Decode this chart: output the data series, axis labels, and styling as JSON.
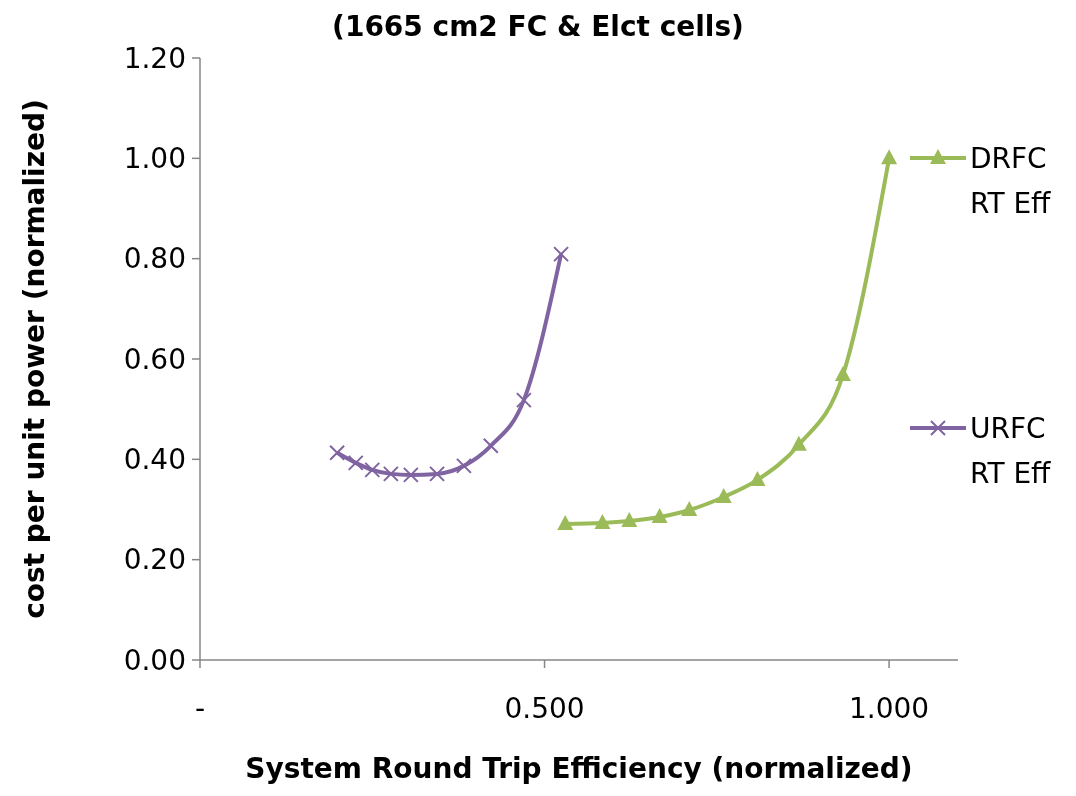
{
  "chart_data": {
    "type": "line",
    "title": "(1665 cm2 FC & Elct cells)",
    "xlabel": "System Round Trip Efficiency (normalized)",
    "ylabel": "cost per unit power (normalized)",
    "xlim": [
      0,
      1.1
    ],
    "ylim": [
      0,
      1.2
    ],
    "xticks": [
      {
        "value": 0,
        "label": "-"
      },
      {
        "value": 0.5,
        "label": "0.500"
      },
      {
        "value": 1,
        "label": "1.000"
      }
    ],
    "yticks": [
      {
        "value": 0,
        "label": "0.00"
      },
      {
        "value": 0.2,
        "label": "0.20"
      },
      {
        "value": 0.4,
        "label": "0.40"
      },
      {
        "value": 0.6,
        "label": "0.60"
      },
      {
        "value": 0.8,
        "label": "0.80"
      },
      {
        "value": 1,
        "label": "1.00"
      },
      {
        "value": 1.2,
        "label": "1.20"
      }
    ],
    "legend": "right",
    "grid": false,
    "series": [
      {
        "name": "DRFC RT Eff",
        "color": "#9bbb59",
        "marker": "triangle",
        "x": [
          0.53,
          0.584,
          0.623,
          0.667,
          0.71,
          0.76,
          0.809,
          0.869,
          0.933,
          1.0
        ],
        "values": [
          0.271,
          0.273,
          0.277,
          0.285,
          0.299,
          0.325,
          0.359,
          0.429,
          0.568,
          1.0
        ]
      },
      {
        "name": "URFC RT Eff",
        "color": "#8064a2",
        "marker": "cross",
        "x": [
          0.199,
          0.226,
          0.25,
          0.277,
          0.306,
          0.344,
          0.383,
          0.422,
          0.47,
          0.524
        ],
        "values": [
          0.413,
          0.393,
          0.379,
          0.371,
          0.369,
          0.371,
          0.387,
          0.427,
          0.518,
          0.809
        ]
      }
    ]
  }
}
